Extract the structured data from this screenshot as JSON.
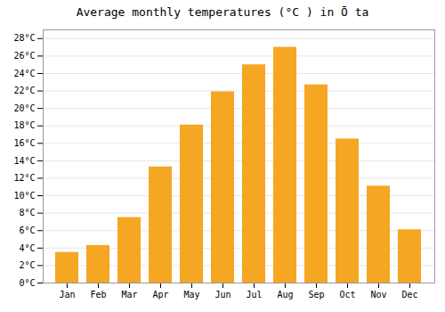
{
  "chart_data": {
    "type": "bar",
    "title": "Average monthly temperatures (°C ) in Ō ta",
    "categories": [
      "Jan",
      "Feb",
      "Mar",
      "Apr",
      "May",
      "Jun",
      "Jul",
      "Aug",
      "Sep",
      "Oct",
      "Nov",
      "Dec"
    ],
    "values": [
      3.5,
      4.3,
      7.5,
      13.3,
      18.1,
      21.9,
      25.0,
      27.0,
      22.7,
      16.5,
      11.1,
      6.1
    ],
    "color": "#F5A623",
    "ylim": [
      0,
      29
    ],
    "yticks": [
      {
        "value": 0,
        "label": "0°C"
      },
      {
        "value": 2,
        "label": "2°C"
      },
      {
        "value": 4,
        "label": "4°C"
      },
      {
        "value": 6,
        "label": "6°C"
      },
      {
        "value": 8,
        "label": "8°C"
      },
      {
        "value": 10,
        "label": "10°C"
      },
      {
        "value": 12,
        "label": "12°C"
      },
      {
        "value": 14,
        "label": "14°C"
      },
      {
        "value": 16,
        "label": "16°C"
      },
      {
        "value": 18,
        "label": "18°C"
      },
      {
        "value": 20,
        "label": "20°C"
      },
      {
        "value": 22,
        "label": "22°C"
      },
      {
        "value": 24,
        "label": "24°C"
      },
      {
        "value": 26,
        "label": "26°C"
      },
      {
        "value": 28,
        "label": "28°C"
      }
    ],
    "grid": true
  }
}
